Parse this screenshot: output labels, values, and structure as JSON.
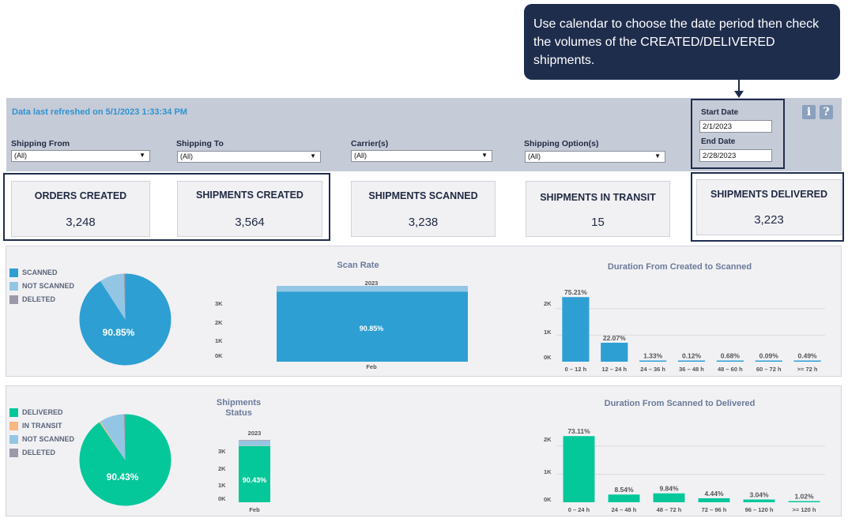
{
  "callout": {
    "text": "Use calendar to choose the date period then check the volumes of the CREATED/DELIVERED shipments."
  },
  "header": {
    "refresh_text": "Data last refreshed on 5/1/2023 1:33:34 PM",
    "filters": [
      {
        "label": "Shipping From",
        "value": "(All)"
      },
      {
        "label": "Shipping To",
        "value": "(All)"
      },
      {
        "label": "Carrier(s)",
        "value": "(All)"
      },
      {
        "label": "Shipping Option(s)",
        "value": "(All)"
      }
    ],
    "start_date": {
      "label": "Start Date",
      "value": "2/1/2023"
    },
    "end_date": {
      "label": "End Date",
      "value": "2/28/2023"
    },
    "info_icon": "i",
    "help_icon": "?"
  },
  "kpis": [
    {
      "title": "ORDERS CREATED",
      "value": "3,248"
    },
    {
      "title": "SHIPMENTS CREATED",
      "value": "3,564"
    },
    {
      "title": "SHIPMENTS SCANNED",
      "value": "3,238"
    },
    {
      "title": "SHIPMENTS IN TRANSIT",
      "value": "15"
    },
    {
      "title": "SHIPMENTS DELIVERED",
      "value": "3,223"
    }
  ],
  "colors": {
    "scanned": "#2e9fd3",
    "not_scanned": "#93c6e4",
    "deleted": "#9c99aa",
    "delivered": "#04c79a",
    "in_transit": "#f7b77f",
    "navy": "#1f2d4d"
  },
  "scan_panel": {
    "legend": [
      "SCANNED",
      "NOT SCANNED",
      "DELETED"
    ],
    "pie_label": "90.85%",
    "scan_rate_title": "Scan Rate",
    "year": "2023",
    "bar_label": "90.85%",
    "month": "Feb",
    "yticks": [
      "3K",
      "2K",
      "1K",
      "0K"
    ],
    "duration_title": "Duration From Created to Scanned",
    "duration_yticks": [
      "2K",
      "1K",
      "0K"
    ]
  },
  "delivery_panel": {
    "legend": [
      "DELIVERED",
      "IN TRANSIT",
      "NOT SCANNED",
      "DELETED"
    ],
    "pie_label": "90.43%",
    "status_title_1": "Shipments",
    "status_title_2": "Status",
    "year": "2023",
    "bar_label": "90.43%",
    "month": "Feb",
    "yticks": [
      "3K",
      "2K",
      "1K",
      "0K"
    ],
    "duration_title": "Duration From Scanned to Delivered",
    "duration_yticks": [
      "2K",
      "1K",
      "0K"
    ]
  },
  "chart_data": [
    {
      "type": "pie",
      "categories": [
        "SCANNED",
        "NOT SCANNED",
        "DELETED"
      ],
      "values": [
        90.85,
        8.6,
        0.55
      ]
    },
    {
      "type": "bar",
      "title": "Scan Rate",
      "categories": [
        "Feb"
      ],
      "series": [
        {
          "name": "SCANNED",
          "values": [
            3238
          ]
        },
        {
          "name": "NOT SCANNED",
          "values": [
            280
          ]
        },
        {
          "name": "DELETED",
          "values": [
            46
          ]
        }
      ],
      "ylim": [
        0,
        3500
      ],
      "data_labels": [
        "90.85%"
      ]
    },
    {
      "type": "bar",
      "title": "Duration From Created to Scanned",
      "categories": [
        "0 – 12 h",
        "12 – 24 h",
        "24 – 36 h",
        "36 – 48 h",
        "48 – 60 h",
        "60 – 72 h",
        ">= 72 h"
      ],
      "values": [
        75.21,
        22.07,
        1.33,
        0.12,
        0.68,
        0.09,
        0.49
      ],
      "data_labels": [
        "75.21%",
        "22.07%",
        "1.33%",
        "0.12%",
        "0.68%",
        "0.09%",
        "0.49%"
      ],
      "total": 3238,
      "ylim": [
        0,
        2800
      ]
    },
    {
      "type": "pie",
      "categories": [
        "DELIVERED",
        "IN TRANSIT",
        "NOT SCANNED",
        "DELETED"
      ],
      "values": [
        90.43,
        0.42,
        8.6,
        0.55
      ]
    },
    {
      "type": "bar",
      "title": "Shipments Status",
      "categories": [
        "Feb"
      ],
      "series": [
        {
          "name": "DELIVERED",
          "values": [
            3223
          ]
        },
        {
          "name": "IN TRANSIT",
          "values": [
            15
          ]
        },
        {
          "name": "NOT SCANNED",
          "values": [
            280
          ]
        },
        {
          "name": "DELETED",
          "values": [
            46
          ]
        }
      ],
      "ylim": [
        0,
        3800
      ],
      "data_labels": [
        "90.43%"
      ]
    },
    {
      "type": "bar",
      "title": "Duration From Scanned to Delivered",
      "categories": [
        "0 – 24 h",
        "24 – 48 h",
        "48 – 72 h",
        "72 – 96 h",
        "96 – 120 h",
        ">= 120 h"
      ],
      "values": [
        73.11,
        8.54,
        9.84,
        4.44,
        3.04,
        1.02
      ],
      "data_labels": [
        "73.11%",
        "8.54%",
        "9.84%",
        "4.44%",
        "3.04%",
        "1.02%"
      ],
      "total": 3223,
      "ylim": [
        0,
        2700
      ]
    }
  ]
}
